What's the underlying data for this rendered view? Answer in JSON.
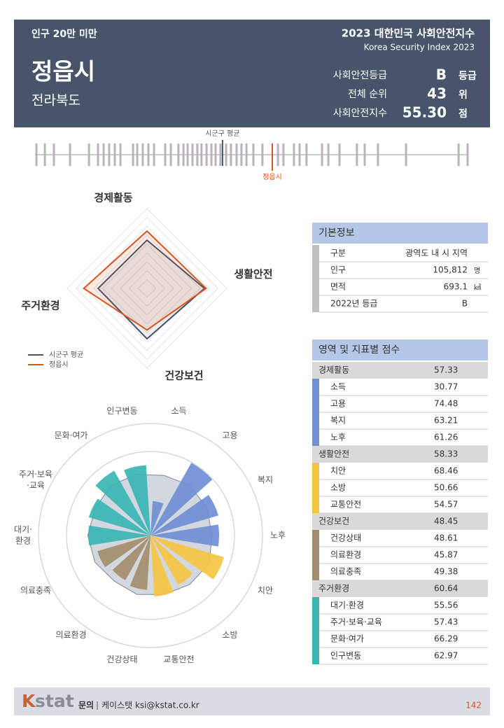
{
  "header": {
    "tag": "인구 20만 미만",
    "city": "정읍시",
    "province": "전라북도",
    "report_title": "2023 대한민국 사회안전지수",
    "report_subtitle": "Korea Security Index 2023",
    "stats": [
      {
        "label": "사회안전등급",
        "value": "B",
        "unit": "등급"
      },
      {
        "label": "전체 순위",
        "value": "43",
        "unit": "위"
      },
      {
        "label": "사회안전지수",
        "value": "55.30",
        "unit": "점"
      }
    ]
  },
  "chart_data": [
    {
      "type": "strip",
      "xlim": [
        44,
        64.6
      ],
      "values": [
        44.07,
        44.47,
        44.9,
        45.67,
        46.57,
        47.0,
        47.27,
        47.53,
        47.8,
        48.07,
        48.67,
        48.87,
        49.13,
        49.4,
        49.67,
        50.2,
        50.47,
        50.83,
        51.07,
        51.27,
        51.5,
        51.73,
        51.93,
        52.17,
        52.4,
        52.6,
        52.83,
        53.1,
        53.33,
        53.6,
        53.83,
        54.07,
        54.4,
        54.83,
        55.57,
        55.83,
        56.33,
        56.6,
        56.93,
        57.67,
        57.97,
        58.5,
        59.33,
        59.7,
        60.33,
        61.67,
        64.17,
        64.6
      ],
      "color": "#b9b3b9",
      "average": 52.93,
      "average_label": "시군구 평균",
      "average_color": "#44546a",
      "city": 55.3,
      "city_label": "정읍시",
      "city_color": "#d9541e"
    },
    {
      "type": "radar",
      "categories": [
        "경제활동",
        "생활안전",
        "건강보건",
        "주거환경"
      ],
      "rlim": [
        25,
        70
      ],
      "rticks": [
        30,
        35,
        40,
        45,
        50,
        55,
        60,
        65,
        70
      ],
      "series": [
        {
          "name": "시군구 평균",
          "color": "#44546a",
          "values": [
            52.2,
            57.4,
            53.4,
            52.6
          ]
        },
        {
          "name": "정읍시",
          "color": "#d9541e",
          "values": [
            57.33,
            58.33,
            48.45,
            60.64
          ]
        }
      ]
    },
    {
      "type": "polar_bar",
      "categories": [
        [
          "소득"
        ],
        [
          "고용"
        ],
        [
          "복지"
        ],
        [
          "노후"
        ],
        [
          "치안"
        ],
        [
          "소방"
        ],
        [
          "교통안전"
        ],
        [
          "건강상태"
        ],
        [
          "의료환경"
        ],
        [
          "의료충족"
        ],
        [
          "대기·",
          "환경"
        ],
        [
          "주거·보육",
          "·교육"
        ],
        [
          "문화·여가"
        ],
        [
          "인구변동"
        ]
      ],
      "rlim": [
        0,
        100
      ],
      "rticks": [
        25,
        50,
        75,
        100
      ],
      "series": [
        {
          "color": "#d3d8e0",
          "values": [
            55,
            57,
            56,
            55,
            58,
            56,
            54,
            54,
            52,
            55,
            56,
            55,
            57,
            56
          ]
        },
        {
          "colors": [
            "#6f8ed4",
            "#6f8ed4",
            "#6f8ed4",
            "#6f8ed4",
            "#f5c542",
            "#f5c542",
            "#f5c542",
            "#a38d6d",
            "#a38d6d",
            "#a38d6d",
            "#3ab5b3",
            "#3ab5b3",
            "#3ab5b3",
            "#3ab5b3"
          ],
          "values": [
            30.77,
            74.48,
            63.21,
            61.26,
            68.46,
            50.66,
            54.57,
            48.61,
            45.87,
            49.38,
            55.56,
            57.43,
            66.29,
            62.97
          ]
        }
      ]
    }
  ],
  "basic_info": {
    "title": "기본정보",
    "rows": [
      [
        "구분",
        "광역도 내 시 지역"
      ],
      [
        "인구",
        "105,812",
        "명"
      ],
      [
        "면적",
        "693.1",
        "㎢"
      ],
      [
        "2022년 등급",
        "B"
      ]
    ]
  },
  "scores": {
    "title": "영역 및 지표별 점수",
    "groups": [
      {
        "name": "경제활동",
        "score": "57.33",
        "color": "#6f8ed4",
        "items": [
          [
            "소득",
            "30.77"
          ],
          [
            "고용",
            "74.48"
          ],
          [
            "복지",
            "63.21"
          ],
          [
            "노후",
            "61.26"
          ]
        ]
      },
      {
        "name": "생활안전",
        "score": "58.33",
        "color": "#f5c542",
        "items": [
          [
            "치안",
            "68.46"
          ],
          [
            "소방",
            "50.66"
          ],
          [
            "교통안전",
            "54.57"
          ]
        ]
      },
      {
        "name": "건강보건",
        "score": "48.45",
        "color": "#a38d6d",
        "items": [
          [
            "건강상태",
            "48.61"
          ],
          [
            "의료환경",
            "45.87"
          ],
          [
            "의료충족",
            "49.38"
          ]
        ]
      },
      {
        "name": "주거환경",
        "score": "60.64",
        "color": "#3ab5b3",
        "items": [
          [
            "대기·환경",
            "55.56"
          ],
          [
            "주거·보육·교육",
            "57.43"
          ],
          [
            "문화·여가",
            "66.29"
          ],
          [
            "인구변동",
            "62.97"
          ]
        ]
      }
    ]
  },
  "footer": {
    "logo_k": "K",
    "logo_rest": "stat",
    "contact_label": "문의",
    "contact": "케이스탯 ksi@kstat.co.kr",
    "page": "142"
  }
}
